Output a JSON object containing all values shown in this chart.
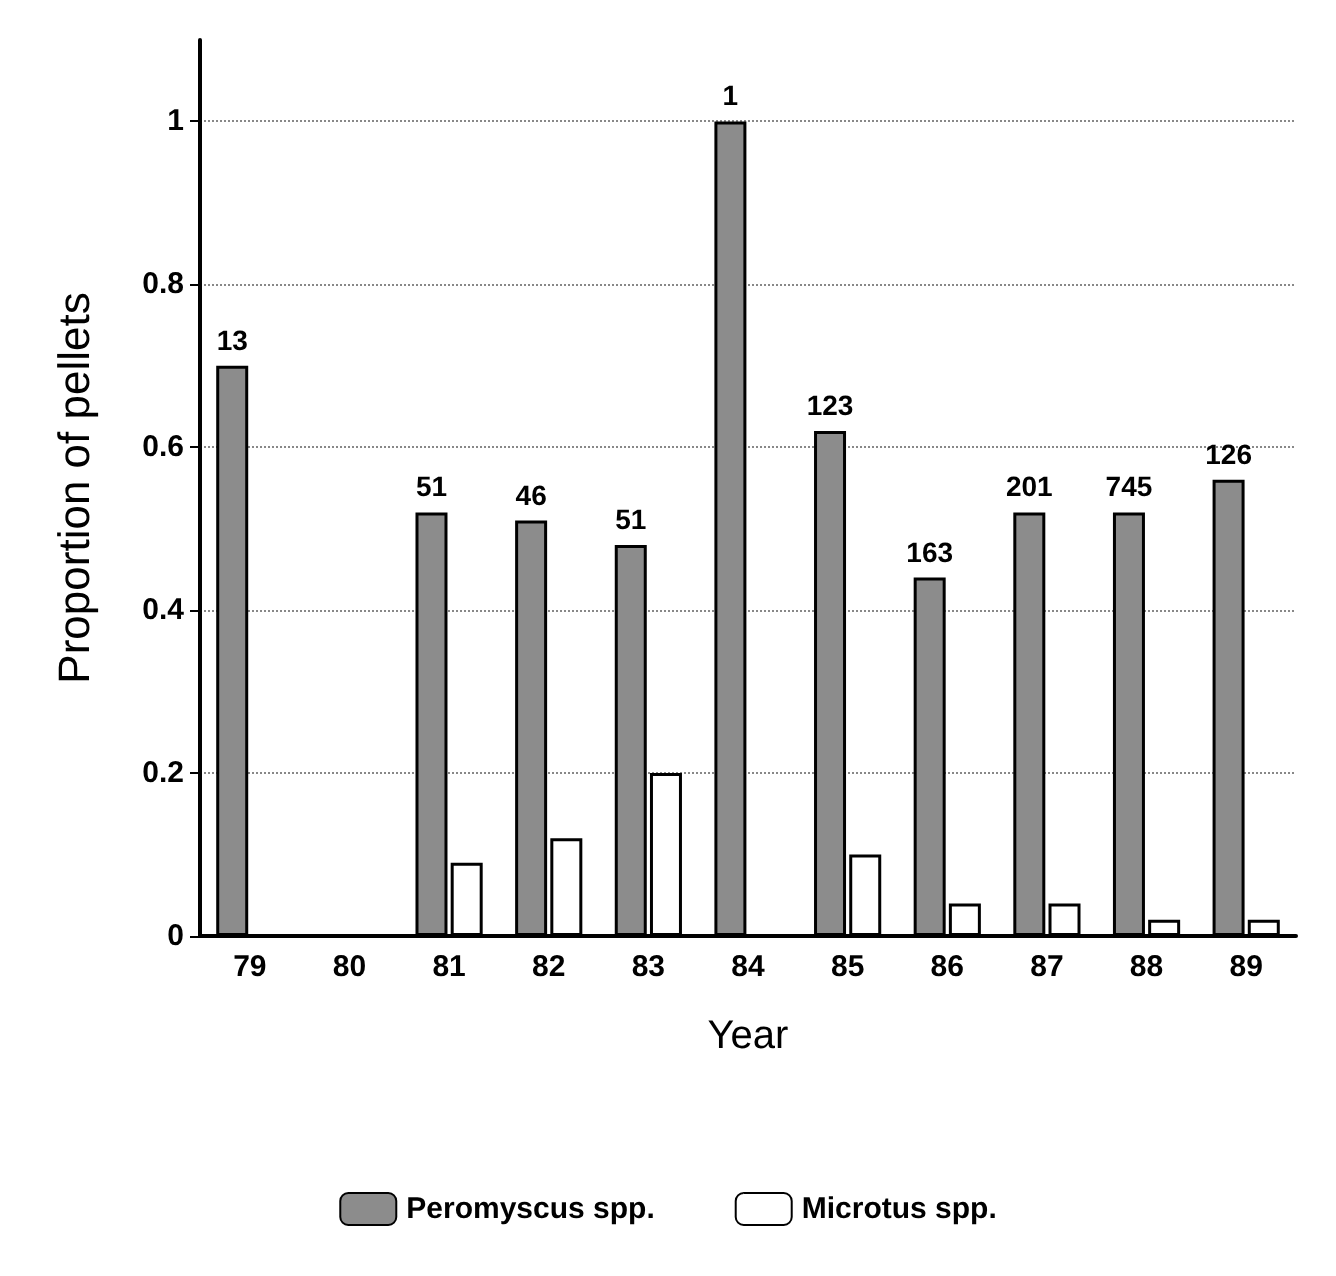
{
  "chart_data": {
    "type": "bar",
    "xlabel": "Year",
    "ylabel": "Proportion of pellets",
    "categories": [
      "79",
      "80",
      "81",
      "82",
      "83",
      "84",
      "85",
      "86",
      "87",
      "88",
      "89"
    ],
    "series": [
      {
        "name": "Peromyscus spp.",
        "color": "#8c8c8c",
        "values": [
          0.7,
          null,
          0.52,
          0.51,
          0.48,
          1,
          0.62,
          0.44,
          0.52,
          0.52,
          0.56
        ]
      },
      {
        "name": "Microtus spp.",
        "color": "#ffffff",
        "values": [
          null,
          null,
          0.09,
          0.12,
          0.2,
          null,
          0.1,
          0.04,
          0.04,
          0.02,
          0.02
        ]
      }
    ],
    "annotations": [
      {
        "text": "13",
        "x": "79",
        "y": 0.7
      },
      {
        "text": "51",
        "x": "81",
        "y": 0.52
      },
      {
        "text": "46",
        "x": "82",
        "y": 0.51
      },
      {
        "text": "51",
        "x": "83",
        "y": 0.48
      },
      {
        "text": "1",
        "x": "84",
        "y": 1
      },
      {
        "text": "123",
        "x": "85",
        "y": 0.62
      },
      {
        "text": "163",
        "x": "86",
        "y": 0.44
      },
      {
        "text": "201",
        "x": "87",
        "y": 0.52
      },
      {
        "text": "745",
        "x": "88",
        "y": 0.52
      },
      {
        "text": "126",
        "x": "89",
        "y": 0.56
      }
    ],
    "ylim": [
      0,
      1.1
    ],
    "yticks": [
      0,
      0.2,
      0.4,
      0.6,
      0.8,
      1
    ],
    "grid": "y",
    "legend": "bottom"
  }
}
